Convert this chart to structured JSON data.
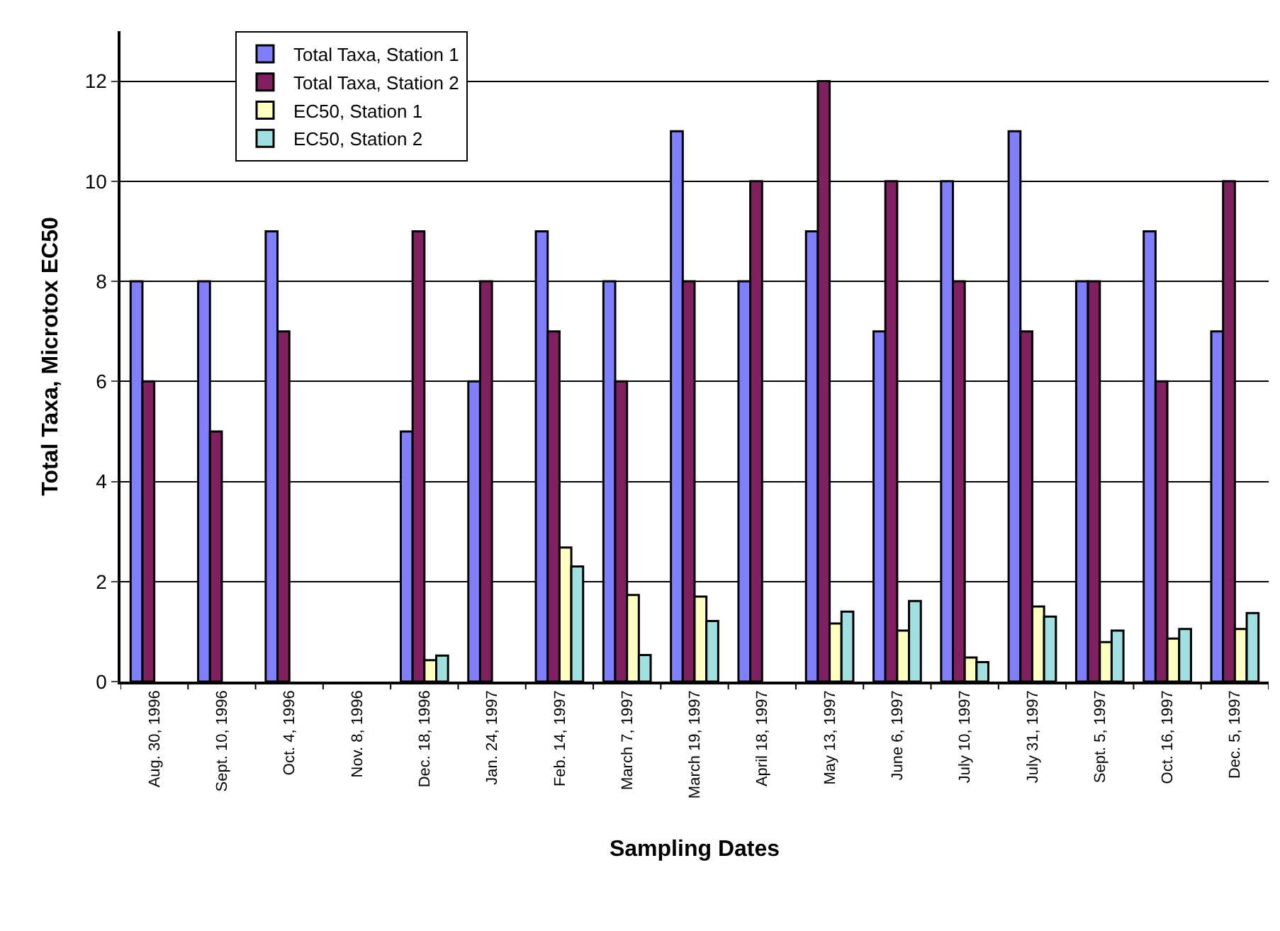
{
  "chart_data": {
    "type": "bar",
    "xlabel": "Sampling Dates",
    "ylabel": "Total Taxa, Microtox EC50",
    "categories": [
      "Aug. 30, 1996",
      "Sept. 10, 1996",
      "Oct. 4, 1996",
      "Nov. 8, 1996",
      "Dec. 18, 1996",
      "Jan. 24, 1997",
      "Feb. 14, 1997",
      "March 7, 1997",
      "March 19, 1997",
      "April 18, 1997",
      "May 13, 1997",
      "June 6, 1997",
      "July 10, 1997",
      "July 31, 1997",
      "Sept. 5, 1997",
      "Oct. 16, 1997",
      "Dec. 5, 1997"
    ],
    "series": [
      {
        "name": "Total Taxa, Station 1",
        "color": "#8080ff",
        "values": [
          8,
          8,
          9,
          null,
          5,
          6,
          9,
          8,
          11,
          8,
          9,
          7,
          10,
          11,
          8,
          9,
          7
        ]
      },
      {
        "name": "Total Taxa, Station 2",
        "color": "#802060",
        "values": [
          6,
          5,
          7,
          null,
          9,
          8,
          7,
          6,
          8,
          10,
          12,
          10,
          8,
          7,
          8,
          6,
          10
        ]
      },
      {
        "name": "EC50, Station 1",
        "color": "#ffffc0",
        "values": [
          null,
          null,
          null,
          null,
          0.43,
          null,
          2.68,
          1.73,
          1.7,
          null,
          1.16,
          1.02,
          0.48,
          1.5,
          0.79,
          0.86,
          1.05
        ]
      },
      {
        "name": "EC50, Station 2",
        "color": "#a0e0e0",
        "values": [
          null,
          null,
          null,
          null,
          0.52,
          null,
          2.3,
          0.53,
          1.21,
          null,
          1.4,
          1.61,
          0.39,
          1.3,
          1.02,
          1.05,
          1.37
        ]
      }
    ],
    "ylim": [
      0,
      13
    ],
    "yticks": [
      0,
      2,
      4,
      6,
      8,
      10,
      12
    ],
    "grid": "y",
    "legend": "top left"
  }
}
